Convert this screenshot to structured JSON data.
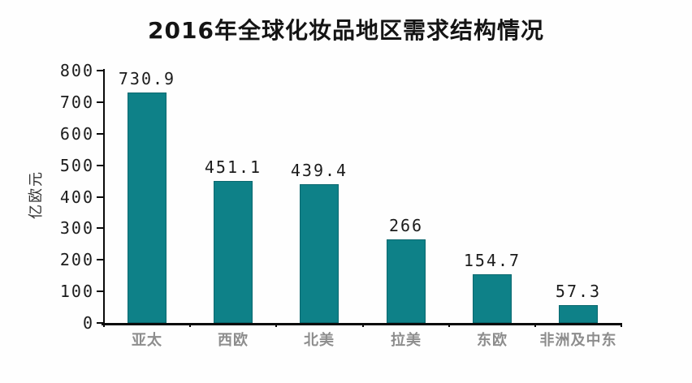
{
  "chart_data": {
    "type": "bar",
    "title": "2016年全球化妆品地区需求结构情况",
    "ylabel": "亿欧元",
    "xlabel": "",
    "categories": [
      "亚太",
      "西欧",
      "北美",
      "拉美",
      "东欧",
      "非洲及中东"
    ],
    "values": [
      730.9,
      451.1,
      439.4,
      266,
      154.7,
      57.3
    ],
    "value_labels": [
      "730.9",
      "451.1",
      "439.4",
      "266",
      "154.7",
      "57.3"
    ],
    "ylim": [
      0,
      800
    ],
    "yticks": [
      0,
      100,
      200,
      300,
      400,
      500,
      600,
      700,
      800
    ],
    "grid": false,
    "legend_position": "none",
    "bar_color": "#0e8188",
    "bar_border_color": "#0a686f",
    "axis_color": "#0a0a0a",
    "value_label_color": "#1c1c1c",
    "category_label_color": "#8d8d8d",
    "title_color": "#141414",
    "background_color": "#fefefe"
  }
}
